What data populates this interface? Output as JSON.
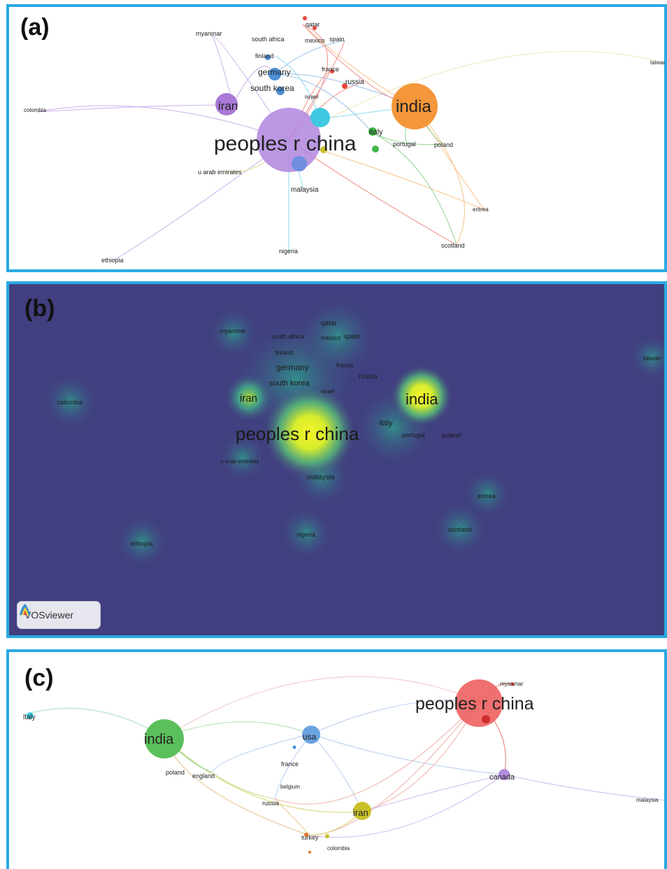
{
  "panels": {
    "a": {
      "label": "(a)",
      "nodes": [
        "myanmar",
        "south africa",
        "qatar",
        "mexico",
        "spain",
        "finland",
        "germany",
        "france",
        "russia",
        "south korea",
        "israel",
        "iran",
        "india",
        "colombia",
        "taiwan",
        "peoples r china",
        "italy",
        "portugal",
        "poland",
        "u arab emirates",
        "malaysia",
        "eritrea",
        "nigeria",
        "scotland",
        "ethiopia"
      ]
    },
    "b": {
      "label": "(b)",
      "badge": "VOSviewer",
      "nodes": [
        "myanmar",
        "qatar",
        "south africa",
        "mexico",
        "spain",
        "finland",
        "germany",
        "france",
        "russia",
        "south korea",
        "israel",
        "iran",
        "india",
        "colombia",
        "taiwan",
        "peoples r china",
        "italy",
        "portugal",
        "poland",
        "u arab emirates",
        "malaysia",
        "eritrea",
        "ethiopia",
        "nigeria",
        "scotland"
      ]
    },
    "c": {
      "label": "(c)",
      "nodes": [
        "myanmar",
        "peoples r china",
        "italy",
        "india",
        "usa",
        "france",
        "poland",
        "england",
        "belgium",
        "canada",
        "russia",
        "iran",
        "malaysia",
        "turkey",
        "colombia"
      ]
    }
  },
  "colors": {
    "frame": "#29aae2",
    "density_background": "#413f80",
    "cluster_red": "#e8453c",
    "cluster_green": "#43b649",
    "cluster_blue": "#4b8fd6",
    "cluster_yellow": "#c9c12a",
    "cluster_purple": "#a979d8",
    "cluster_cyan": "#3fc8e0",
    "cluster_orange": "#f4963a"
  }
}
